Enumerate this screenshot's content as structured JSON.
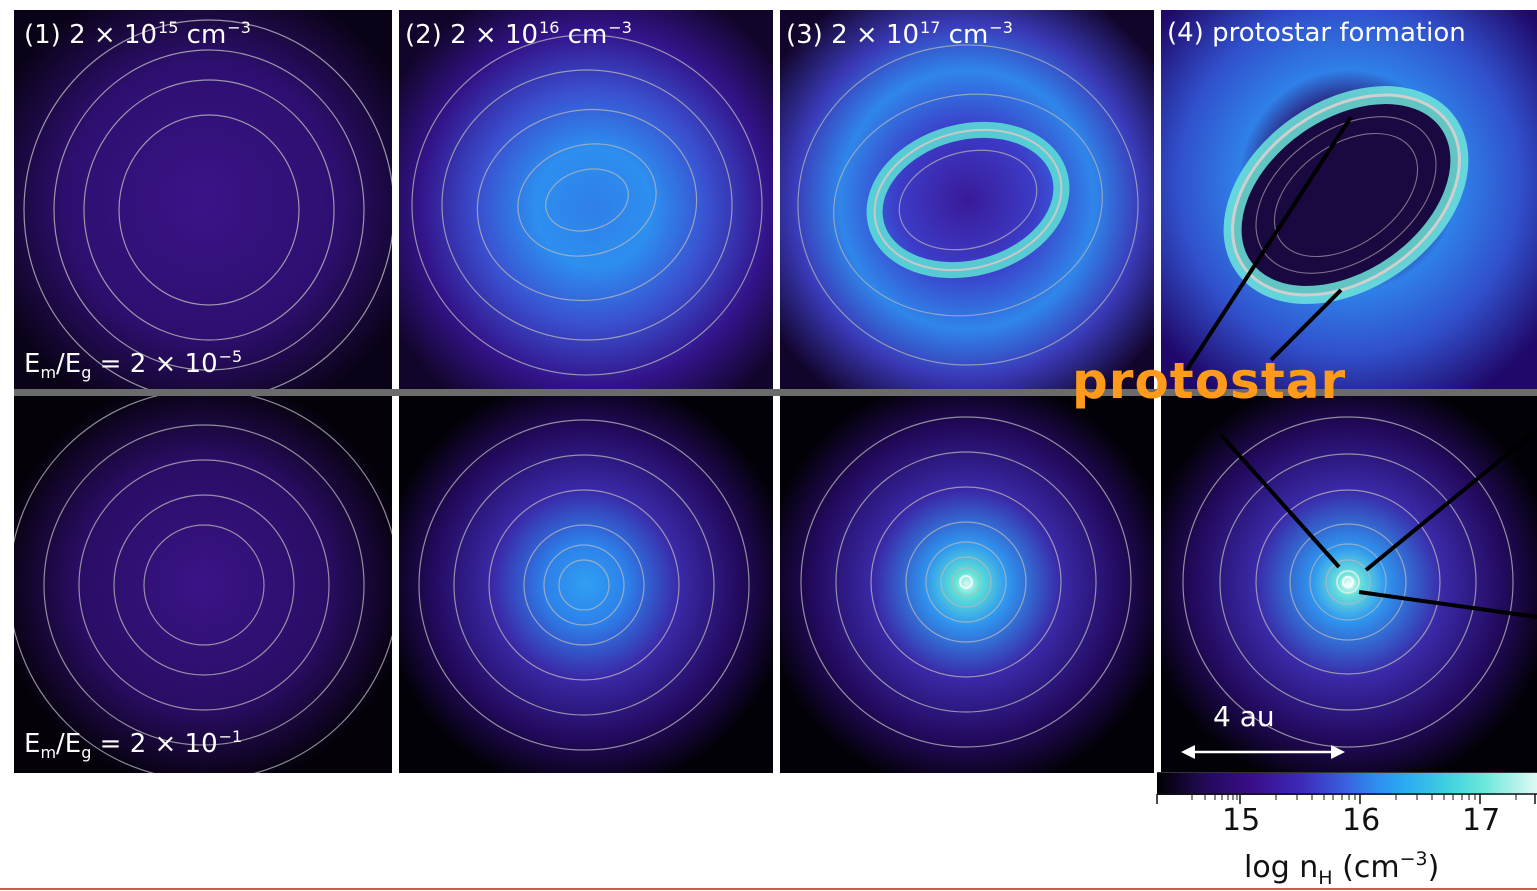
{
  "panels": {
    "p1_prefix": "(1) 2 × 10",
    "p1_exp": "15",
    "p1_unit": " cm",
    "p1_unit_exp": "−3",
    "p2_prefix": "(2) 2 × 10",
    "p2_exp": "16",
    "p2_unit": " cm",
    "p2_unit_exp": "−3",
    "p3_prefix": "(3) 2 × 10",
    "p3_exp": "17",
    "p3_unit": " cm",
    "p3_unit_exp": "−3",
    "p4_title": "(4) protostar formation"
  },
  "rows": {
    "top_e": "E",
    "top_m": "m",
    "top_slash": "/E",
    "top_g": "g",
    "top_value": " = 2 × 10",
    "top_exp": "−5",
    "bottom_e": "E",
    "bottom_m": "m",
    "bottom_slash": "/E",
    "bottom_g": "g",
    "bottom_value": " = 2 × 10",
    "bottom_exp": "−1"
  },
  "annotation": {
    "protostar": "protostar"
  },
  "scale_bar": {
    "label": "4 au"
  },
  "colorbar": {
    "ticks": [
      "15",
      "16",
      "17"
    ],
    "title_prefix": "log n",
    "title_sub": "H",
    "title_unit": " (cm",
    "title_exp": "−3",
    "title_close": ")"
  }
}
